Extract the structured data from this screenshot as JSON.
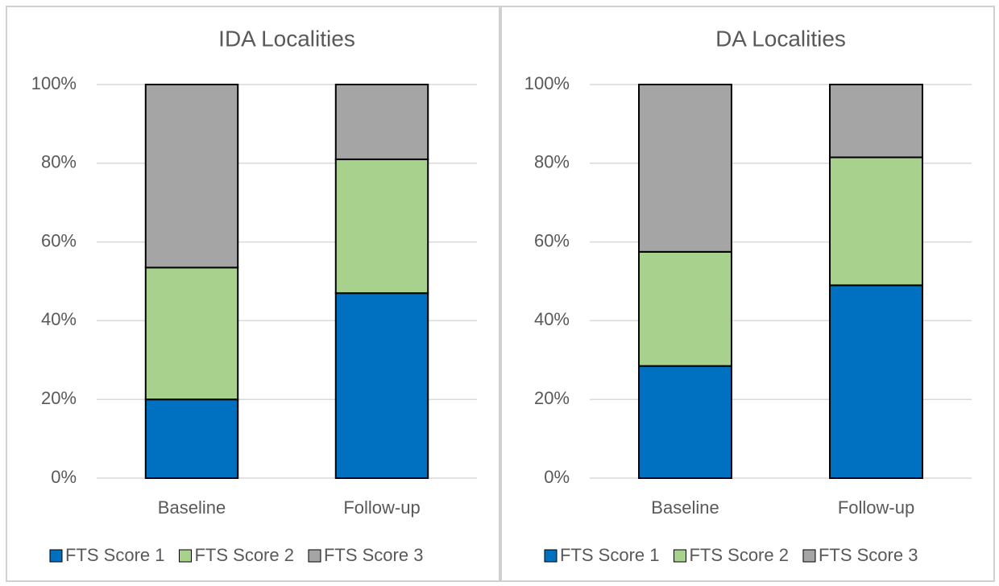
{
  "chart_data": [
    {
      "type": "bar",
      "stacked": true,
      "title": "IDA Localities",
      "categories": [
        "Baseline",
        "Follow-up"
      ],
      "series": [
        {
          "name": "FTS Score 1",
          "color": "#0070c0",
          "values": [
            20,
            47
          ]
        },
        {
          "name": "FTS Score 2",
          "color": "#a9d18e",
          "values": [
            33.5,
            34
          ]
        },
        {
          "name": "FTS Score 3",
          "color": "#a5a5a5",
          "values": [
            46.5,
            19
          ]
        }
      ],
      "ylim": [
        0,
        100
      ],
      "yticks": [
        {
          "value": 0,
          "label": "0%"
        },
        {
          "value": 20,
          "label": "20%"
        },
        {
          "value": 40,
          "label": "40%"
        },
        {
          "value": 60,
          "label": "60%"
        },
        {
          "value": 80,
          "label": "80%"
        },
        {
          "value": 100,
          "label": "100%"
        }
      ],
      "grid": true,
      "legend": "bottom"
    },
    {
      "type": "bar",
      "stacked": true,
      "title": "DA Localities",
      "categories": [
        "Baseline",
        "Follow-up"
      ],
      "series": [
        {
          "name": "FTS Score 1",
          "color": "#0070c0",
          "values": [
            28.5,
            49
          ]
        },
        {
          "name": "FTS Score 2",
          "color": "#a9d18e",
          "values": [
            29,
            32.5
          ]
        },
        {
          "name": "FTS Score 3",
          "color": "#a5a5a5",
          "values": [
            42.5,
            18.5
          ]
        }
      ],
      "ylim": [
        0,
        100
      ],
      "yticks": [
        {
          "value": 0,
          "label": "0%"
        },
        {
          "value": 20,
          "label": "20%"
        },
        {
          "value": 40,
          "label": "40%"
        },
        {
          "value": 60,
          "label": "60%"
        },
        {
          "value": 80,
          "label": "80%"
        },
        {
          "value": 100,
          "label": "100%"
        }
      ],
      "grid": true,
      "legend": "bottom"
    }
  ]
}
